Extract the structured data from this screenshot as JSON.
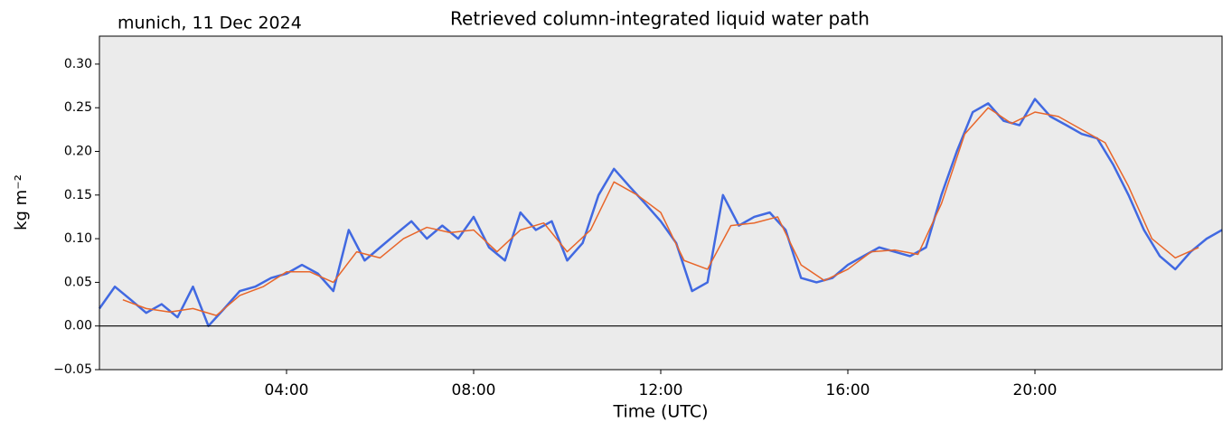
{
  "chart_data": {
    "type": "line",
    "title": "Retrieved column-integrated liquid water path",
    "subtitle": "munich, 11 Dec 2024",
    "x_label": "Time (UTC)",
    "y_label": "kg m⁻²",
    "xlim": [
      0,
      24
    ],
    "ylim": [
      -0.05,
      0.332
    ],
    "xticks": [
      {
        "value": 4,
        "label": "04:00"
      },
      {
        "value": 8,
        "label": "08:00"
      },
      {
        "value": 12,
        "label": "12:00"
      },
      {
        "value": 16,
        "label": "16:00"
      },
      {
        "value": 20,
        "label": "20:00"
      }
    ],
    "yticks": [
      {
        "value": -0.05,
        "label": "−0.05"
      },
      {
        "value": 0,
        "label": "0.00"
      },
      {
        "value": 0.05,
        "label": "0.05"
      },
      {
        "value": 0.1,
        "label": "0.10"
      },
      {
        "value": 0.15,
        "label": "0.15"
      },
      {
        "value": 0.2,
        "label": "0.20"
      },
      {
        "value": 0.25,
        "label": "0.25"
      },
      {
        "value": 0.3,
        "label": "0.30"
      }
    ],
    "reference_line": 0,
    "background": "#ebebeb",
    "series": [
      {
        "color": "#4169e1",
        "x": [
          0,
          0.33,
          0.67,
          1,
          1.33,
          1.67,
          2,
          2.33,
          2.67,
          3,
          3.33,
          3.67,
          4,
          4.33,
          4.67,
          5,
          5.33,
          5.67,
          6,
          6.33,
          6.67,
          7,
          7.33,
          7.67,
          8,
          8.33,
          8.67,
          9,
          9.33,
          9.67,
          10,
          10.33,
          10.67,
          11,
          11.33,
          11.67,
          12,
          12.33,
          12.67,
          13,
          13.33,
          13.67,
          14,
          14.33,
          14.67,
          15,
          15.33,
          15.67,
          16,
          16.33,
          16.67,
          17,
          17.33,
          17.67,
          18,
          18.33,
          18.67,
          19,
          19.33,
          19.67,
          20,
          20.33,
          20.67,
          21,
          21.33,
          21.67,
          22,
          22.33,
          22.67,
          23,
          23.33,
          23.67,
          24
        ],
        "values": [
          0.02,
          0.045,
          0.03,
          0.015,
          0.025,
          0.01,
          0.045,
          0.0,
          0.02,
          0.04,
          0.045,
          0.055,
          0.06,
          0.07,
          0.06,
          0.04,
          0.11,
          0.075,
          0.09,
          0.105,
          0.12,
          0.1,
          0.115,
          0.1,
          0.125,
          0.09,
          0.075,
          0.13,
          0.11,
          0.12,
          0.075,
          0.095,
          0.15,
          0.18,
          0.16,
          0.14,
          0.12,
          0.095,
          0.04,
          0.05,
          0.15,
          0.115,
          0.125,
          0.13,
          0.11,
          0.055,
          0.05,
          0.055,
          0.07,
          0.08,
          0.09,
          0.085,
          0.08,
          0.09,
          0.15,
          0.2,
          0.245,
          0.255,
          0.235,
          0.23,
          0.26,
          0.24,
          0.23,
          0.22,
          0.215,
          0.185,
          0.15,
          0.11,
          0.08,
          0.065,
          0.085,
          0.1,
          0.11
        ]
      },
      {
        "color": "#e8662a",
        "x": [
          0.5,
          1,
          1.5,
          2,
          2.5,
          3,
          3.5,
          4,
          4.5,
          5,
          5.5,
          6,
          6.5,
          7,
          7.5,
          8,
          8.5,
          9,
          9.5,
          10,
          10.5,
          11,
          11.5,
          12,
          12.5,
          13,
          13.5,
          14,
          14.5,
          15,
          15.5,
          16,
          16.5,
          17,
          17.5,
          18,
          18.5,
          19,
          19.5,
          20,
          20.5,
          21,
          21.5,
          22,
          22.5,
          23,
          23.5
        ],
        "values": [
          0.03,
          0.02,
          0.016,
          0.02,
          0.012,
          0.035,
          0.045,
          0.062,
          0.062,
          0.05,
          0.085,
          0.078,
          0.1,
          0.113,
          0.107,
          0.11,
          0.085,
          0.11,
          0.118,
          0.085,
          0.11,
          0.165,
          0.15,
          0.13,
          0.075,
          0.065,
          0.115,
          0.118,
          0.125,
          0.07,
          0.052,
          0.065,
          0.085,
          0.087,
          0.082,
          0.14,
          0.22,
          0.25,
          0.232,
          0.245,
          0.24,
          0.225,
          0.21,
          0.16,
          0.1,
          0.078,
          0.09
        ]
      }
    ]
  }
}
